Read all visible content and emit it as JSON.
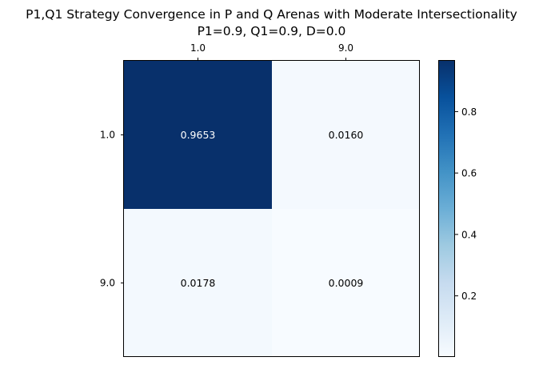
{
  "chart_data": {
    "type": "heatmap",
    "title_lines": [
      "P1,Q1 Strategy Convergence in P and Q Arenas with Moderate Intersectionality",
      "P1=0.9, Q1=0.9, D=0.0"
    ],
    "x_categories": [
      "1.0",
      "9.0"
    ],
    "y_categories": [
      "1.0",
      "9.0"
    ],
    "values": [
      [
        0.9653,
        0.016
      ],
      [
        0.0178,
        0.0009
      ]
    ],
    "cell_labels": [
      [
        "0.9653",
        "0.0160"
      ],
      [
        "0.0178",
        "0.0009"
      ]
    ],
    "x_tick_position": "top",
    "colormap": "Blues",
    "colorbar": {
      "min": 0.0009,
      "max": 0.9653,
      "ticks": [
        0.2,
        0.4,
        0.6,
        0.8
      ],
      "tick_labels": [
        "0.2",
        "0.4",
        "0.6",
        "0.8"
      ]
    },
    "grid": false,
    "label_colors": {
      "dark": "#ffffff",
      "light": "#000000"
    }
  }
}
